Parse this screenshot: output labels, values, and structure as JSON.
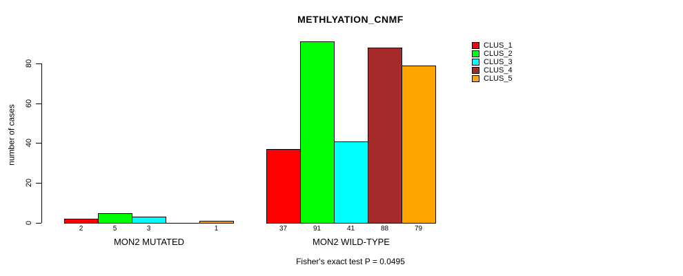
{
  "title": "METHLYATION_CNMF",
  "subtitle": "Fisher's exact test P = 0.0495",
  "chart_data": {
    "type": "bar",
    "title": "METHLYATION_CNMF",
    "xlabel": "",
    "ylabel": "number of cases",
    "ylim": [
      0,
      91
    ],
    "y_ticks": [
      0,
      20,
      40,
      60,
      80
    ],
    "grid": false,
    "legend_position": "right",
    "categories": [
      "MON2 MUTATED",
      "MON2 WILD-TYPE"
    ],
    "series": [
      {
        "name": "CLUS_1",
        "color": "#ff0000",
        "values": [
          2,
          37
        ]
      },
      {
        "name": "CLUS_2",
        "color": "#00ff00",
        "values": [
          5,
          91
        ]
      },
      {
        "name": "CLUS_3",
        "color": "#00ffff",
        "values": [
          3,
          41
        ]
      },
      {
        "name": "CLUS_4",
        "color": "#a52a2a",
        "values": [
          0,
          88
        ]
      },
      {
        "name": "CLUS_5",
        "color": "#ffa500",
        "values": [
          1,
          79
        ]
      }
    ],
    "bar_value_labels": [
      [
        "2",
        "5",
        "3",
        "",
        "1"
      ],
      [
        "37",
        "91",
        "41",
        "88",
        "79"
      ]
    ],
    "annotation": "Fisher's exact test P = 0.0495",
    "axis_color": "#000000",
    "bar_border_color": "#000000"
  }
}
